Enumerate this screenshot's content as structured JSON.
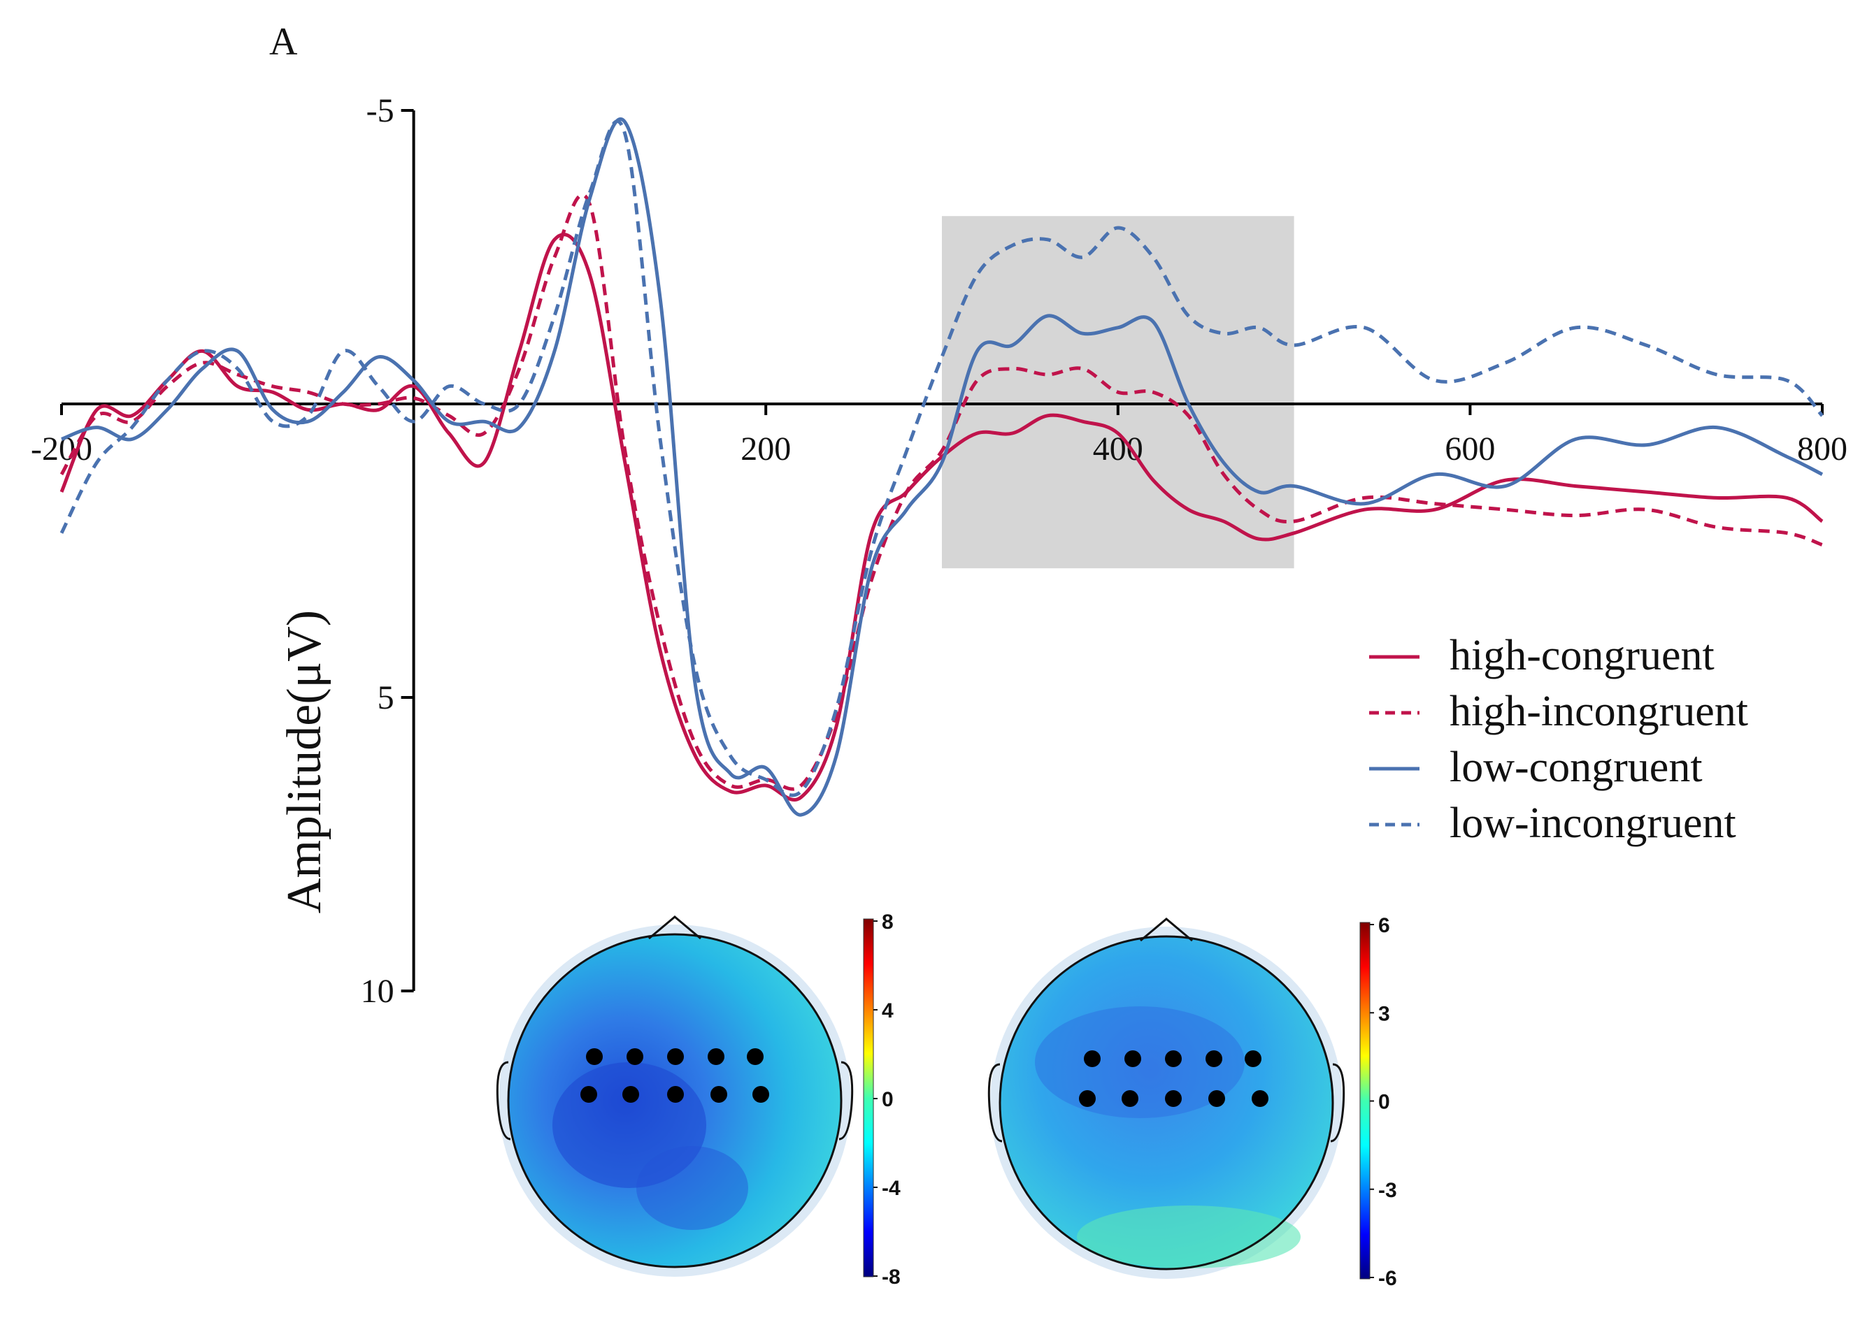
{
  "chart_data": {
    "type": "line",
    "panel_label": "A",
    "title": "",
    "xlabel": "",
    "ylabel": "Amplitude(μV)",
    "xlim": [
      -200,
      800
    ],
    "ylim": [
      10,
      -5
    ],
    "y_inverted": true,
    "x_ticks": [
      "-200",
      "200",
      "400",
      "600",
      "800"
    ],
    "x_tick_values": [
      -200,
      200,
      400,
      600,
      800
    ],
    "y_ticks": [
      "-5",
      "5",
      "10"
    ],
    "y_tick_values": [
      -5,
      5,
      10
    ],
    "highlight_window": {
      "x": [
        300,
        500
      ],
      "y": [
        -3.2,
        2.8
      ],
      "color": "#d6d6d6"
    },
    "legend_position": "right",
    "series": [
      {
        "name": "high-congruent",
        "color": "#c0134b",
        "dash": "solid",
        "x": [
          -200,
          -180,
          -160,
          -140,
          -120,
          -100,
          -80,
          -60,
          -40,
          -20,
          0,
          20,
          40,
          60,
          80,
          100,
          120,
          140,
          160,
          180,
          200,
          220,
          240,
          260,
          280,
          300,
          320,
          340,
          360,
          380,
          400,
          420,
          440,
          460,
          480,
          500,
          540,
          580,
          620,
          660,
          700,
          740,
          780,
          800
        ],
        "y": [
          1.5,
          0.1,
          0.2,
          -0.4,
          -0.9,
          -0.3,
          -0.2,
          0.1,
          0,
          0.1,
          -0.3,
          0.5,
          1.0,
          -0.9,
          -2.8,
          -2.2,
          1.0,
          4.2,
          6.0,
          6.6,
          6.5,
          6.7,
          5.5,
          2.2,
          1.5,
          0.9,
          0.5,
          0.5,
          0.2,
          0.3,
          0.5,
          1.3,
          1.8,
          2.0,
          2.3,
          2.2,
          1.8,
          1.8,
          1.3,
          1.4,
          1.5,
          1.6,
          1.6,
          2.0
        ]
      },
      {
        "name": "high-incongruent",
        "color": "#c0134b",
        "dash": "dashed",
        "x": [
          -200,
          -180,
          -160,
          -140,
          -120,
          -100,
          -80,
          -60,
          -40,
          -20,
          0,
          20,
          40,
          60,
          80,
          100,
          120,
          140,
          160,
          180,
          200,
          220,
          240,
          260,
          280,
          300,
          320,
          340,
          360,
          380,
          400,
          420,
          440,
          460,
          480,
          500,
          540,
          580,
          620,
          660,
          700,
          740,
          780,
          800
        ],
        "y": [
          1.2,
          0.2,
          0.3,
          -0.3,
          -0.7,
          -0.5,
          -0.3,
          -0.2,
          0,
          0,
          -0.1,
          0.2,
          0.5,
          -0.6,
          -2.5,
          -3.4,
          0.8,
          3.8,
          5.8,
          6.5,
          6.4,
          6.5,
          5.3,
          3.0,
          1.5,
          0.8,
          -0.4,
          -0.6,
          -0.5,
          -0.6,
          -0.2,
          -0.2,
          0.2,
          1.2,
          1.8,
          2.0,
          1.6,
          1.7,
          1.8,
          1.9,
          1.8,
          2.1,
          2.2,
          2.4
        ]
      },
      {
        "name": "low-congruent",
        "color": "#4a72b0",
        "dash": "solid",
        "x": [
          -200,
          -180,
          -160,
          -140,
          -120,
          -100,
          -80,
          -60,
          -40,
          -20,
          0,
          20,
          40,
          60,
          80,
          100,
          120,
          140,
          160,
          180,
          200,
          220,
          240,
          260,
          280,
          300,
          320,
          340,
          360,
          380,
          400,
          420,
          440,
          460,
          480,
          500,
          540,
          580,
          620,
          660,
          700,
          740,
          780,
          800
        ],
        "y": [
          0.6,
          0.4,
          0.6,
          0.1,
          -0.6,
          -0.9,
          0.1,
          0.3,
          -0.2,
          -0.8,
          -0.4,
          0.3,
          0.3,
          0.4,
          -0.9,
          -3.5,
          -4.8,
          -1.8,
          4.8,
          6.3,
          6.2,
          7.0,
          6.0,
          2.8,
          1.8,
          1.0,
          -0.9,
          -1.0,
          -1.5,
          -1.2,
          -1.3,
          -1.4,
          0,
          1.0,
          1.5,
          1.4,
          1.7,
          1.2,
          1.4,
          0.6,
          0.7,
          0.4,
          0.9,
          1.2
        ]
      },
      {
        "name": "low-incongruent",
        "color": "#4a72b0",
        "dash": "dashed",
        "x": [
          -200,
          -180,
          -160,
          -140,
          -120,
          -100,
          -80,
          -60,
          -40,
          -20,
          0,
          20,
          40,
          60,
          80,
          100,
          120,
          140,
          160,
          180,
          200,
          220,
          240,
          260,
          280,
          300,
          320,
          340,
          360,
          380,
          400,
          420,
          440,
          460,
          480,
          500,
          540,
          580,
          620,
          660,
          700,
          740,
          780,
          800
        ],
        "y": [
          2.2,
          1.0,
          0.4,
          -0.4,
          -0.9,
          -0.6,
          0.3,
          0.2,
          -0.9,
          -0.3,
          0.3,
          -0.3,
          0.0,
          0,
          -1.5,
          -3.6,
          -4.6,
          0.6,
          4.5,
          6.0,
          6.4,
          6.6,
          5.2,
          2.5,
          0.8,
          -0.8,
          -2.2,
          -2.7,
          -2.8,
          -2.5,
          -3.0,
          -2.5,
          -1.5,
          -1.2,
          -1.3,
          -1.0,
          -1.3,
          -0.4,
          -0.7,
          -1.3,
          -1.0,
          -0.5,
          -0.4,
          0.2
        ]
      }
    ],
    "topomaps": [
      {
        "name": "left-topomap",
        "colorbar_ticks": [
          "8",
          "4",
          "0",
          "-4",
          "-8"
        ],
        "colorbar_range": [
          -8,
          8
        ]
      },
      {
        "name": "right-topomap",
        "colorbar_ticks": [
          "6",
          "3",
          "0",
          "-3",
          "-6"
        ],
        "colorbar_range": [
          -6,
          6
        ]
      }
    ]
  }
}
